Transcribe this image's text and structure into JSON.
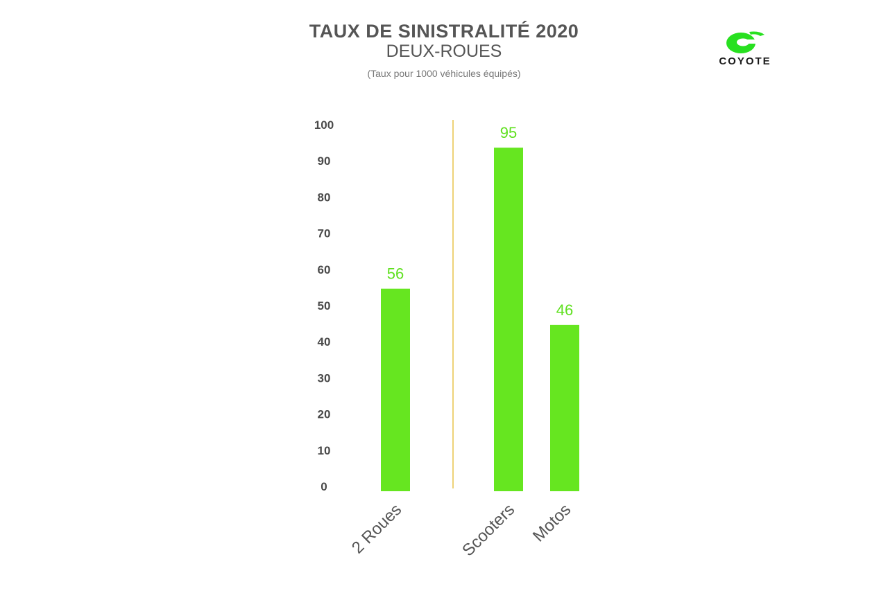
{
  "title": "TAUX DE SINISTRALITÉ 2020",
  "subtitle": "DEUX-ROUES",
  "note": "(Taux pour 1000 véhicules équipés)",
  "logo": {
    "text": "COYOTE",
    "icon": "coyote-logo-icon",
    "color": "#28e020"
  },
  "colors": {
    "bar": "#66e620",
    "value_label": "#5fe01f",
    "separator": "#e8c44a",
    "tick": "#4a4a4a"
  },
  "chart_data": {
    "type": "bar",
    "categories": [
      "2 Roues",
      "Scooters",
      "Motos"
    ],
    "values": [
      56,
      95,
      46
    ],
    "data_labels": [
      "56",
      "95",
      "46"
    ],
    "ylim": [
      0,
      100
    ],
    "yticks": [
      0,
      10,
      20,
      30,
      40,
      50,
      60,
      70,
      80,
      90,
      100
    ],
    "xlabel": "",
    "ylabel": "",
    "grid": false,
    "separator_after_category": "2 Roues"
  }
}
